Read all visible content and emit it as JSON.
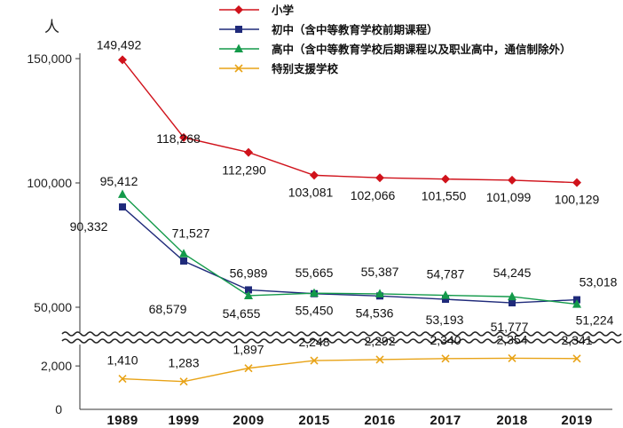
{
  "chart_data": {
    "type": "line",
    "y_unit": "人",
    "categories": [
      "1989",
      "1999",
      "2009",
      "2015",
      "2016",
      "2017",
      "2018",
      "2019"
    ],
    "yticks_upper": [
      "150,000",
      "100,000",
      "50,000"
    ],
    "yticks_lower": [
      "2,000",
      "0"
    ],
    "ylim_upper": [
      45000,
      155000
    ],
    "ylim_lower": [
      0,
      2700
    ],
    "axis_break": true,
    "legend_position": "top",
    "series": [
      {
        "name": "小学",
        "color": "#d0121b",
        "marker": "diamond",
        "values": [
          149492,
          118268,
          112290,
          103081,
          102066,
          101550,
          101099,
          100129
        ],
        "labels": [
          "149,492",
          "118,268",
          "112,290",
          "103,081",
          "102,066",
          "101,550",
          "101,099",
          "100,129"
        ]
      },
      {
        "name": "初中（含中等教育学校前期课程）",
        "color": "#1f2a7a",
        "marker": "square",
        "values": [
          90332,
          68579,
          56989,
          55450,
          54536,
          53193,
          51777,
          53018
        ],
        "labels": [
          "90,332",
          "68,579",
          "56,989",
          "55,450",
          "54,536",
          "53,193",
          "51,777",
          "53,018"
        ]
      },
      {
        "name": "高中（含中等教育学校后期课程以及职业高中，通信制除外）",
        "color": "#139a4a",
        "marker": "triangle",
        "values": [
          95412,
          71527,
          54655,
          55665,
          55387,
          54787,
          54245,
          51224
        ],
        "labels": [
          "95,412",
          "71,527",
          "54,655",
          "55,665",
          "55,387",
          "54,787",
          "54,245",
          "51,224"
        ]
      },
      {
        "name": "特别支援学校",
        "color": "#e8a317",
        "marker": "x",
        "values": [
          1410,
          1283,
          1897,
          2248,
          2292,
          2340,
          2354,
          2341
        ],
        "labels": [
          "1,410",
          "1,283",
          "1,897",
          "2,248",
          "2,292",
          "2,340",
          "2,354",
          "2,341"
        ]
      }
    ]
  }
}
